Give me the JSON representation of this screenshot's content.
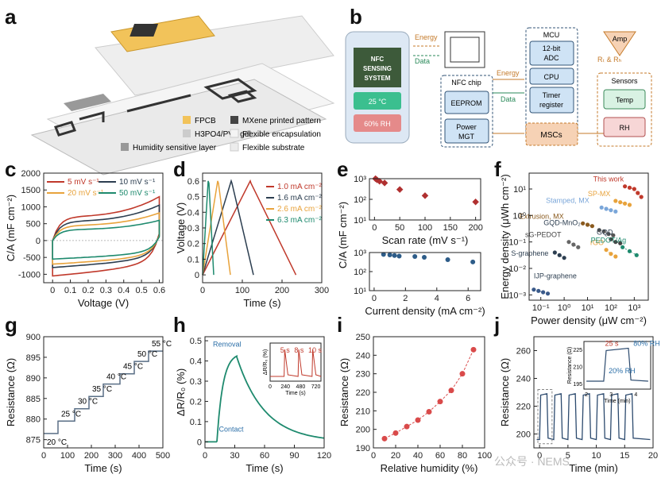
{
  "panel_labels": {
    "a": "a",
    "b": "b",
    "c": "c",
    "d": "d",
    "e": "e",
    "f": "f",
    "g": "g",
    "h": "h",
    "i": "i",
    "j": "j"
  },
  "panel_a": {
    "legend": [
      {
        "label": "FPCB",
        "color": "#f2c35a"
      },
      {
        "label": "MXene printed pattern",
        "color": "#444444"
      },
      {
        "label": "H3PO4/PVA gel",
        "color": "#cccccc"
      },
      {
        "label": "Flexible encapsulation",
        "color": "#f4f4f4"
      },
      {
        "label": "Humidity sensitive layer",
        "color": "#999999"
      },
      {
        "label": "Flexible substrate",
        "color": "#ececec"
      }
    ]
  },
  "panel_b": {
    "phone_lines": [
      "NFC",
      "SENSING",
      "SYSTEM"
    ],
    "temp_readout": "25 °C",
    "rh_readout": "60% RH",
    "energy": "Energy",
    "data": "Data",
    "nfc_chip": "NFC chip",
    "eeprom": "EEPROM",
    "power_mgt": [
      "Power",
      "MGT"
    ],
    "mcu": "MCU",
    "adc": [
      "12-bit",
      "ADC"
    ],
    "cpu": "CPU",
    "timer": [
      "Timer",
      "register"
    ],
    "mscs": "MSCs",
    "amp": "Amp",
    "rt_rrh": "Rₜ & Rₕ",
    "sensors": "Sensors",
    "temp": "Temp",
    "rh": "RH",
    "colors": {
      "phone_green": "#3bbf8f",
      "phone_red": "#e58a8a",
      "blue_box": "#cfe3f5",
      "orange_box": "#f6d2b5",
      "temp_box": "#d9f2e3",
      "rh_box": "#f7d6d6"
    }
  },
  "chart_data": [
    {
      "panel": "c",
      "type": "line",
      "xlabel": "Voltage (V)",
      "ylabel": "C/A (mF cm⁻²)",
      "xlim": [
        -0.05,
        0.62
      ],
      "ylim": [
        -1250,
        2000
      ],
      "xticks": [
        0.0,
        0.1,
        0.2,
        0.3,
        0.4,
        0.5,
        0.6
      ],
      "yticks": [
        -1000,
        -500,
        0,
        500,
        1000,
        1500,
        2000
      ],
      "series": [
        {
          "name": "5 mV s⁻¹",
          "color": "#c0392b",
          "amp": 1300,
          "low": -1050
        },
        {
          "name": "10 mV s⁻¹",
          "color": "#2c3e50",
          "amp": 1050,
          "low": -800
        },
        {
          "name": "20 mV s⁻¹",
          "color": "#e8a33c",
          "amp": 820,
          "low": -700
        },
        {
          "name": "50 mV s⁻¹",
          "color": "#1e8a6e",
          "amp": 600,
          "low": -550
        }
      ]
    },
    {
      "panel": "d",
      "type": "line",
      "xlabel": "Time (s)",
      "ylabel": "Voltage (V)",
      "xlim": [
        0,
        300
      ],
      "ylim": [
        -0.05,
        0.65
      ],
      "xticks": [
        0,
        100,
        200,
        300
      ],
      "yticks": [
        0.0,
        0.1,
        0.2,
        0.3,
        0.4,
        0.5,
        0.6
      ],
      "series": [
        {
          "name": "1.0 mA cm⁻²",
          "color": "#c0392b",
          "t_peak": 120,
          "t_end": 235
        },
        {
          "name": "1.6 mA cm⁻²",
          "color": "#2c3e50",
          "t_peak": 72,
          "t_end": 128
        },
        {
          "name": "2.6 mA cm⁻²",
          "color": "#e8a33c",
          "t_peak": 38,
          "t_end": 70
        },
        {
          "name": "6.3 mA cm⁻²",
          "color": "#1e8a6e",
          "t_peak": 14,
          "t_end": 28
        }
      ]
    },
    {
      "panel": "e_top",
      "type": "scatter",
      "xlabel": "Scan rate (mV s⁻¹)",
      "ylabel": "C/A (mF cm⁻²)",
      "xlim": [
        -10,
        210
      ],
      "ylog": true,
      "ylim_exp": [
        1,
        3
      ],
      "xticks": [
        0,
        50,
        100,
        150,
        200
      ],
      "yticks": [
        "10¹",
        "10²",
        "10³"
      ],
      "x": [
        2,
        5,
        10,
        20,
        50,
        100,
        200
      ],
      "values": [
        1000,
        880,
        750,
        620,
        300,
        150,
        75
      ],
      "color": "#b03030"
    },
    {
      "panel": "e_bottom",
      "type": "scatter",
      "xlabel": "Current density (mA cm⁻²)",
      "ylabel": "C/A (mF cm⁻²)",
      "xlim": [
        -0.3,
        6.8
      ],
      "ylog": true,
      "ylim_exp": [
        1,
        3
      ],
      "xticks": [
        0,
        2,
        4,
        6
      ],
      "yticks": [
        "10¹",
        "10²",
        "10³"
      ],
      "x": [
        0.6,
        1.0,
        1.3,
        1.6,
        2.6,
        3.2,
        4.7,
        6.3
      ],
      "values": [
        800,
        750,
        700,
        650,
        620,
        560,
        420,
        320
      ],
      "color": "#2d5c88"
    },
    {
      "panel": "f",
      "type": "scatter",
      "xlabel": "Power density (μW cm⁻²)",
      "ylabel": "Energy density (μWh cm⁻²)",
      "xlog": true,
      "ylog": true,
      "xlim_exp": [
        -1.5,
        3.6
      ],
      "ylim_exp": [
        -3.2,
        1.6
      ],
      "xticks": [
        "10⁻¹",
        "10⁰",
        "10¹",
        "10²",
        "10³"
      ],
      "yticks": [
        "10⁻³",
        "10⁻²",
        "10⁻¹",
        "10⁰",
        "10¹"
      ],
      "series": [
        {
          "name": "This work",
          "color": "#c0392b",
          "label_color": "#c0392b",
          "pts": [
            [
              2.6,
              1.1
            ],
            [
              2.8,
              1.05
            ],
            [
              3.0,
              1.0
            ],
            [
              3.15,
              0.85
            ],
            [
              3.3,
              0.7
            ]
          ]
        },
        {
          "name": "SP-MX",
          "color": "#e8a33c",
          "label_color": "#e8a33c",
          "pts": [
            [
              2.2,
              0.55
            ],
            [
              2.4,
              0.5
            ],
            [
              2.6,
              0.45
            ],
            [
              2.8,
              0.4
            ]
          ]
        },
        {
          "name": "Stamped, MX",
          "color": "#7aa6d9",
          "label_color": "#7aa6d9",
          "pts": [
            [
              1.6,
              0.3
            ],
            [
              1.8,
              0.25
            ],
            [
              2.0,
              0.2
            ],
            [
              2.2,
              0.15
            ]
          ]
        },
        {
          "name": "Extrusion, MX",
          "color": "#8a5a1e",
          "label_color": "#8a5a1e",
          "pts": [
            [
              0.8,
              -0.3
            ],
            [
              1.0,
              -0.35
            ],
            [
              1.2,
              -0.4
            ]
          ]
        },
        {
          "name": "GQD-MnO₂",
          "color": "#555555",
          "label_color": "#2c3e50",
          "pts": [
            [
              1.5,
              -0.55
            ],
            [
              1.7,
              -0.6
            ],
            [
              1.9,
              -0.7
            ],
            [
              2.1,
              -0.75
            ]
          ]
        },
        {
          "name": "GQD",
          "color": "#444444",
          "label_color": "#2c3e50",
          "pts": [
            [
              2.0,
              -0.9
            ],
            [
              2.2,
              -1.0
            ],
            [
              2.4,
              -1.05
            ]
          ]
        },
        {
          "name": "sG-PEDOT",
          "color": "#666666",
          "label_color": "#444444",
          "pts": [
            [
              0.2,
              -1.0
            ],
            [
              0.4,
              -1.1
            ],
            [
              0.6,
              -1.2
            ]
          ]
        },
        {
          "name": "rGO",
          "color": "#e8a33c",
          "label_color": "#e8a33c",
          "pts": [
            [
              1.8,
              -1.3
            ],
            [
              2.0,
              -1.45
            ],
            [
              2.2,
              -1.55
            ]
          ]
        },
        {
          "name": "PEDOT/Ag",
          "color": "#1e8a6e",
          "label_color": "#1e8a6e",
          "pts": [
            [
              2.5,
              -1.2
            ],
            [
              2.8,
              -1.35
            ],
            [
              3.1,
              -1.5
            ]
          ]
        },
        {
          "name": "S-graphene",
          "color": "#2c3e50",
          "label_color": "#2c3e50",
          "pts": [
            [
              -0.4,
              -1.4
            ],
            [
              -0.2,
              -1.5
            ],
            [
              0.0,
              -1.6
            ]
          ]
        },
        {
          "name": "IJP-graphene",
          "color": "#3a5a8a",
          "label_color": "#2c3e50",
          "pts": [
            [
              -1.3,
              -2.8
            ],
            [
              -1.1,
              -2.85
            ],
            [
              -0.9,
              -2.9
            ],
            [
              -0.7,
              -2.95
            ]
          ]
        }
      ]
    },
    {
      "panel": "g",
      "type": "line",
      "xlabel": "Time (s)",
      "ylabel": "Resistance (Ω)",
      "xlim": [
        0,
        500
      ],
      "ylim": [
        873,
        900
      ],
      "xticks": [
        0,
        100,
        200,
        300,
        400,
        500
      ],
      "yticks": [
        875,
        880,
        885,
        890,
        895,
        900
      ],
      "steps": [
        [
          0,
          876.5
        ],
        [
          60,
          879.5
        ],
        [
          130,
          882.5
        ],
        [
          190,
          885.5
        ],
        [
          250,
          888.5
        ],
        [
          320,
          891
        ],
        [
          380,
          894
        ],
        [
          440,
          896.5
        ]
      ],
      "step_labels": [
        "20 °C",
        "25 °C",
        "30 °C",
        "35 °C",
        "40 °C",
        "45 °C",
        "50 °C",
        "55 °C"
      ],
      "color": "#5a6f86"
    },
    {
      "panel": "h",
      "type": "line",
      "xlabel": "Time (s)",
      "ylabel": "ΔR/R₀ (%)",
      "xlim": [
        0,
        120
      ],
      "ylim": [
        -0.03,
        0.52
      ],
      "xticks": [
        0,
        30,
        60,
        90,
        120
      ],
      "yticks": [
        0.0,
        0.1,
        0.2,
        0.3,
        0.4,
        0.5
      ],
      "annotations": [
        "Removal",
        "Contact"
      ],
      "color": "#1e8a6e",
      "inset": {
        "xlabel": "Time (s)",
        "ylabel": "ΔR/R₀ (%)",
        "xticks": [
          0,
          240,
          480,
          720
        ],
        "labels": [
          "5 s",
          "8 s",
          "10 s"
        ],
        "color": "#c0392b"
      }
    },
    {
      "panel": "i",
      "type": "scatter",
      "xlabel": "Relative humidity (%)",
      "ylabel": "Resistance (Ω)",
      "xlim": [
        0,
        100
      ],
      "ylim": [
        190,
        250
      ],
      "xticks": [
        0,
        20,
        40,
        60,
        80,
        100
      ],
      "yticks": [
        190,
        200,
        210,
        220,
        230,
        240,
        250
      ],
      "x": [
        10,
        20,
        30,
        40,
        50,
        60,
        70,
        80,
        90
      ],
      "values": [
        195,
        198,
        201.5,
        205,
        209.5,
        215,
        221,
        230,
        243
      ],
      "color": "#d94a4a"
    },
    {
      "panel": "j",
      "type": "line",
      "xlabel": "Time (min)",
      "ylabel": "Resistance (Ω)",
      "xlim": [
        -1,
        20
      ],
      "ylim": [
        190,
        270
      ],
      "xticks": [
        0,
        5,
        10,
        15,
        20
      ],
      "yticks": [
        200,
        220,
        240,
        260
      ],
      "color": "#2c4a6e",
      "inset": {
        "xlabel": "Time (min)",
        "ylabel": "Resistance (Ω)",
        "xticks": [
          2,
          3,
          4
        ],
        "yticks": [
          195,
          210,
          225
        ],
        "labels": [
          "25 s",
          "80% RH",
          "20% RH"
        ]
      }
    }
  ],
  "watermark": "公众号 · NEMS"
}
